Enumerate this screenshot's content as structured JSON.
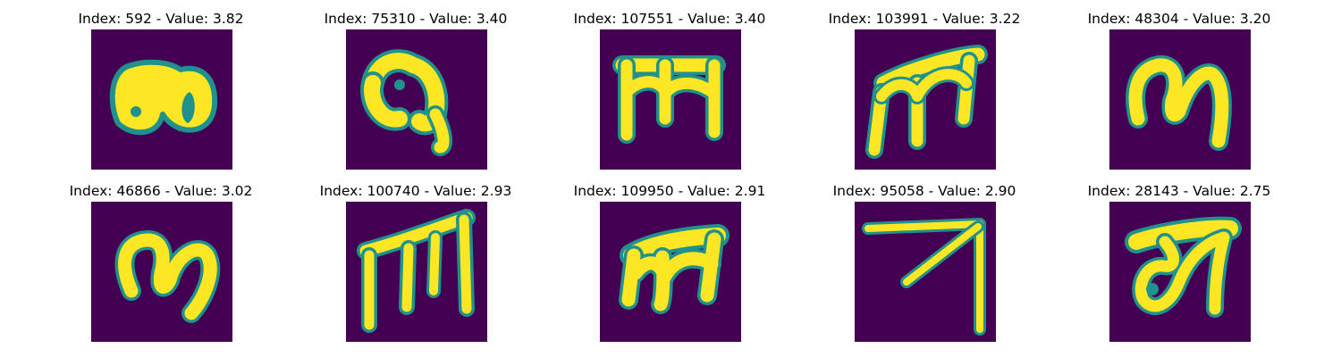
{
  "colors": {
    "background": "#440154",
    "foreground": "#fde725",
    "edge": "#21918c"
  },
  "panels": [
    {
      "index": "592",
      "value": "3.82",
      "title": "Index: 592 - Value: 3.82"
    },
    {
      "index": "75310",
      "value": "3.40",
      "title": "Index: 75310 - Value: 3.40"
    },
    {
      "index": "107551",
      "value": "3.40",
      "title": "Index: 107551 - Value: 3.40"
    },
    {
      "index": "103991",
      "value": "3.22",
      "title": "Index: 103991 - Value: 3.22"
    },
    {
      "index": "48304",
      "value": "3.20",
      "title": "Index: 48304 - Value: 3.20"
    },
    {
      "index": "46866",
      "value": "3.02",
      "title": "Index: 46866 - Value: 3.02"
    },
    {
      "index": "100740",
      "value": "2.93",
      "title": "Index: 100740 - Value: 2.93"
    },
    {
      "index": "109950",
      "value": "2.91",
      "title": "Index: 109950 - Value: 2.91"
    },
    {
      "index": "95058",
      "value": "2.90",
      "title": "Index: 95058 - Value: 2.90"
    },
    {
      "index": "28143",
      "value": "2.75",
      "title": "Index: 28143 - Value: 2.75"
    }
  ]
}
